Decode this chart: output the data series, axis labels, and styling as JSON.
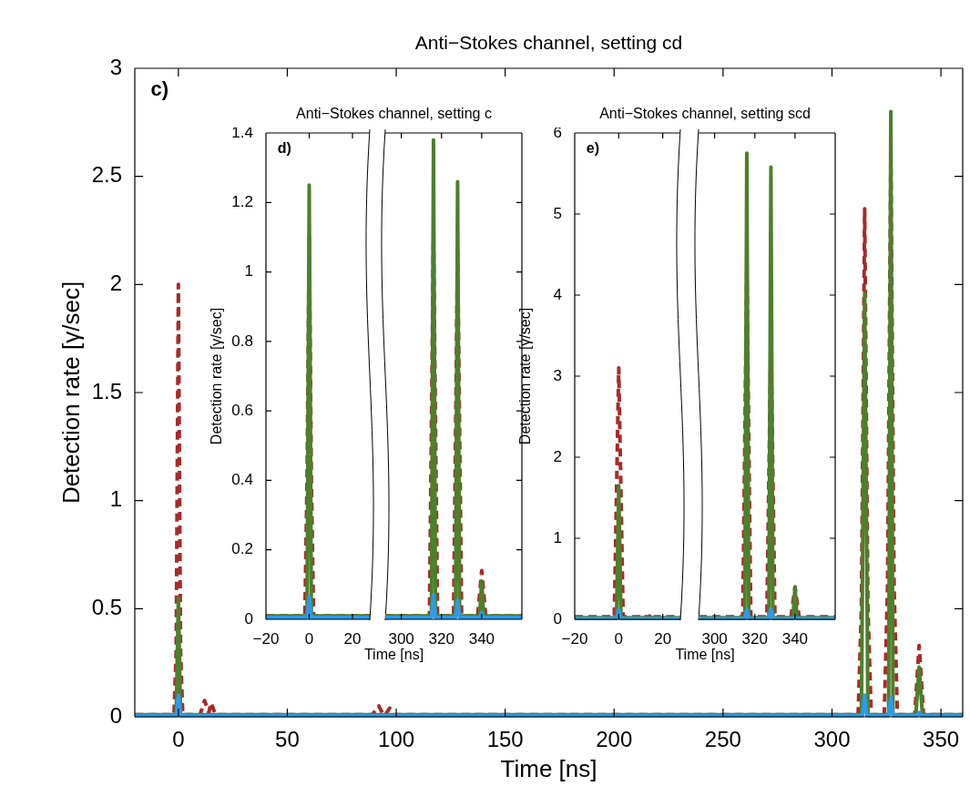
{
  "chart_data": [
    {
      "type": "line",
      "title": "Anti−Stokes channel, setting cd",
      "xlabel": "Time [ns]",
      "ylabel": "Detection rate [γ/sec]",
      "annotations": [
        "c)"
      ],
      "marker": "none",
      "xlim": [
        -20,
        360
      ],
      "ylim": [
        0,
        3
      ],
      "xticks": [
        0,
        50,
        100,
        150,
        200,
        250,
        300,
        350
      ],
      "yticks": [
        0,
        0.5,
        1,
        1.5,
        2,
        2.5,
        3
      ],
      "series": [
        {
          "color": "#a82a2a",
          "line_style": "dashed",
          "x": [
            -20,
            -2,
            -1,
            0,
            1,
            2,
            10,
            12,
            14,
            15,
            17,
            20,
            89,
            92,
            94,
            95,
            97,
            99,
            150,
            250,
            312,
            313.5,
            315,
            316.5,
            318,
            324,
            325.5,
            327,
            328.5,
            330,
            338,
            340,
            342,
            360
          ],
          "values": [
            0.01,
            0.01,
            0.3,
            2.0,
            0.3,
            0.01,
            0.01,
            0.075,
            0.02,
            0.065,
            0.01,
            0.01,
            0.01,
            0.05,
            0.01,
            0.01,
            0.04,
            0.01,
            0.01,
            0.01,
            0.01,
            0.5,
            2.35,
            0.5,
            0.01,
            0.01,
            0.6,
            2.6,
            0.6,
            0.01,
            0.01,
            0.33,
            0.01,
            0.01
          ]
        },
        {
          "color": "#4e7f2c",
          "line_style": "solid",
          "x": [
            -20,
            -1,
            0,
            1,
            20,
            150,
            313.5,
            315,
            316.5,
            326,
            327,
            328,
            338.5,
            340,
            341.5,
            360
          ],
          "values": [
            0.01,
            0.01,
            0.55,
            0.01,
            0.01,
            0.01,
            0.01,
            1.96,
            0.01,
            0.01,
            2.8,
            0.01,
            0.01,
            0.23,
            0.01,
            0.01
          ]
        },
        {
          "color": "#2b9be8",
          "line_style": "solid",
          "x": [
            -20,
            -1,
            0,
            1,
            150,
            314,
            315,
            316,
            326,
            327,
            328,
            339,
            340,
            341,
            360
          ],
          "values": [
            0.005,
            0.005,
            0.1,
            0.005,
            0.005,
            0.005,
            0.1,
            0.005,
            0.005,
            0.09,
            0.005,
            0.005,
            0.02,
            0.005,
            0.005
          ]
        }
      ]
    },
    {
      "type": "line",
      "title": "Anti−Stokes channel, setting c",
      "xlabel": "Time [ns]",
      "ylabel": "Detection rate [γ/sec]",
      "annotations": [
        "d)"
      ],
      "marker": "none",
      "xlim": [
        -20,
        28
      ],
      "ylim": [
        0,
        1.4
      ],
      "xticks": [
        -20,
        0,
        20
      ],
      "yticks": [
        0,
        0.2,
        0.4,
        0.6,
        0.8,
        1,
        1.2,
        1.4
      ],
      "series": [
        {
          "color": "#a82a2a",
          "line_style": "dashed",
          "x": [
            -20,
            -2,
            -1,
            0,
            1,
            2,
            10,
            28
          ],
          "values": [
            0.01,
            0.01,
            0.4,
            1.1,
            0.4,
            0.01,
            0.01,
            0.01
          ]
        },
        {
          "color": "#4e7f2c",
          "line_style": "solid",
          "x": [
            -20,
            -1,
            0,
            1,
            28
          ],
          "values": [
            0.01,
            0.01,
            1.25,
            0.01,
            0.01
          ]
        },
        {
          "color": "#2b9be8",
          "line_style": "solid",
          "x": [
            -20,
            -1,
            0,
            1,
            28
          ],
          "values": [
            0.005,
            0.005,
            0.065,
            0.005,
            0.005
          ]
        }
      ]
    },
    {
      "type": "line",
      "marker": "none",
      "tick_labels": "x",
      "xlim": [
        292,
        360
      ],
      "ylim": [
        0,
        1.4
      ],
      "xticks": [
        300,
        320,
        340
      ],
      "yticks": [
        0,
        0.2,
        0.4,
        0.6,
        0.8,
        1,
        1.2,
        1.4
      ],
      "series": [
        {
          "color": "#a82a2a",
          "line_style": "dashed",
          "x": [
            292,
            314,
            316,
            318,
            326,
            328,
            330,
            338,
            340,
            342,
            360
          ],
          "values": [
            0.01,
            0.01,
            1.12,
            0.01,
            0.01,
            1.07,
            0.01,
            0.01,
            0.14,
            0.01,
            0.01
          ]
        },
        {
          "color": "#4e7f2c",
          "line_style": "solid",
          "x": [
            292,
            315,
            316,
            317,
            327,
            328,
            329,
            339,
            340,
            341,
            360
          ],
          "values": [
            0.01,
            0.01,
            1.38,
            0.01,
            0.01,
            1.26,
            0.01,
            0.01,
            0.11,
            0.01,
            0.01
          ]
        },
        {
          "color": "#2b9be8",
          "line_style": "solid",
          "x": [
            292,
            315,
            316,
            317,
            327,
            328,
            329,
            339,
            340,
            341,
            360
          ],
          "values": [
            0.005,
            0.005,
            0.07,
            0.005,
            0.005,
            0.055,
            0.005,
            0.005,
            0.02,
            0.005,
            0.005
          ]
        }
      ]
    },
    {
      "type": "line",
      "title": "Anti−Stokes channel, setting scd",
      "xlabel": "Time [ns]",
      "ylabel": "Detection rate [γ/sec]",
      "annotations": [
        "e)"
      ],
      "marker": "none",
      "xlim": [
        -20,
        28
      ],
      "ylim": [
        0,
        6
      ],
      "xticks": [
        -20,
        0,
        20
      ],
      "yticks": [
        0,
        1,
        2,
        3,
        4,
        5,
        6
      ],
      "series": [
        {
          "color": "#a82a2a",
          "line_style": "dashed",
          "x": [
            -20,
            -2,
            0,
            2,
            10,
            11,
            12,
            14,
            15,
            16,
            28
          ],
          "values": [
            0.03,
            0.03,
            3.1,
            0.03,
            0.03,
            0.06,
            0.03,
            0.03,
            0.08,
            0.03,
            0.03
          ]
        },
        {
          "color": "#4e7f2c",
          "line_style": "solid",
          "x": [
            -20,
            -1,
            0,
            1,
            28
          ],
          "values": [
            0.02,
            0.02,
            1.65,
            0.02,
            0.02
          ]
        },
        {
          "color": "#2b9be8",
          "line_style": "solid",
          "x": [
            -20,
            -1,
            0,
            1,
            28
          ],
          "values": [
            0.01,
            0.01,
            0.12,
            0.01,
            0.01
          ]
        }
      ]
    },
    {
      "type": "line",
      "marker": "none",
      "tick_labels": "x",
      "xlim": [
        292,
        360
      ],
      "ylim": [
        0,
        6
      ],
      "xticks": [
        300,
        320,
        340
      ],
      "yticks": [
        0,
        1,
        2,
        3,
        4,
        5,
        6
      ],
      "series": [
        {
          "color": "#a82a2a",
          "line_style": "dashed",
          "x": [
            292,
            314,
            316,
            318,
            326,
            328,
            330,
            338,
            340,
            342,
            360
          ],
          "values": [
            0.03,
            0.03,
            4.35,
            0.03,
            0.03,
            3.5,
            0.03,
            0.03,
            0.4,
            0.03,
            0.03
          ]
        },
        {
          "color": "#4e7f2c",
          "line_style": "solid",
          "x": [
            292,
            315,
            316,
            317,
            327,
            328,
            329,
            339,
            340,
            341,
            360
          ],
          "values": [
            0.02,
            0.02,
            5.75,
            0.02,
            0.02,
            5.58,
            0.02,
            0.02,
            0.4,
            0.02,
            0.02
          ]
        },
        {
          "color": "#2b9be8",
          "line_style": "solid",
          "x": [
            292,
            315,
            316,
            317,
            327,
            328,
            329,
            339,
            340,
            341,
            360
          ],
          "values": [
            0.01,
            0.01,
            0.12,
            0.01,
            0.01,
            0.13,
            0.01,
            0.01,
            0.03,
            0.01,
            0.01
          ]
        }
      ]
    }
  ]
}
